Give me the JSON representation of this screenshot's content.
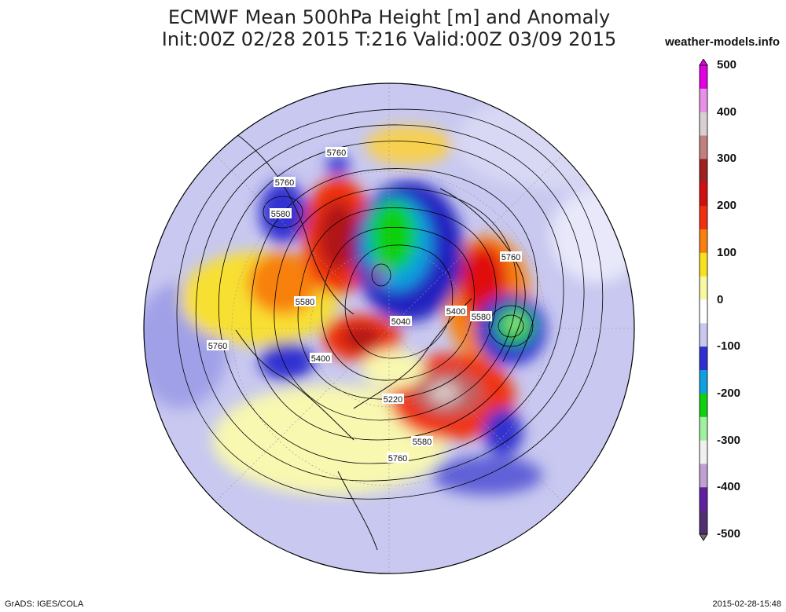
{
  "title_line1": "ECMWF Mean 500hPa Height [m] and Anomaly",
  "title_line2": "Init:00Z 02/28 2015 T:216 Valid:00Z 03/09 2015",
  "site": "weather-models.info",
  "footer_left": "GrADS: IGES/COLA",
  "footer_right": "2015-02-28-15:48",
  "colorbar": {
    "ticks": [
      "500",
      "400",
      "300",
      "200",
      "100",
      "0",
      "-100",
      "-200",
      "-300",
      "-400",
      "-500"
    ],
    "colors": {
      "500": "#e000e0",
      "450": "#e890e8",
      "400": "#d8d0d0",
      "350": "#c08080",
      "300": "#a02020",
      "250": "#d01010",
      "200": "#f03010",
      "150": "#f88010",
      "100": "#f8e020",
      "50": "#f8f8a0",
      "0": "#ffffff",
      "-50": "#c8c8f0",
      "-100": "#3030d0",
      "-150": "#10a0e0",
      "-200": "#10d010",
      "-250": "#a0f0a0",
      "-300": "#f0f0f0",
      "-350": "#c0a0d0",
      "-400": "#6020a0",
      "-450": "#503070",
      "-500": "#707070"
    }
  },
  "contour_labels": [
    "5760",
    "5760",
    "5580",
    "5580",
    "5400",
    "5040",
    "5760",
    "5580",
    "5760",
    "5400",
    "5220",
    "5580",
    "5760"
  ]
}
